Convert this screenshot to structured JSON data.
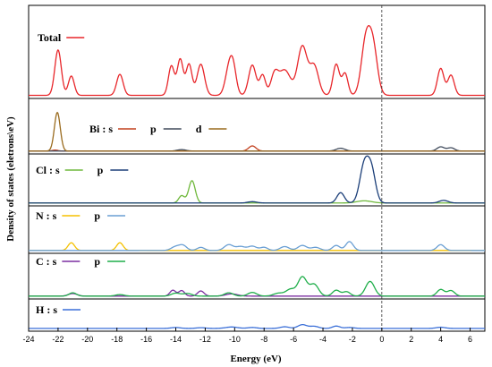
{
  "chart_data": {
    "type": "line",
    "xlabel": "Energy (eV)",
    "ylabel": "Density of states (eletrons\\eV)",
    "xlim": [
      -24,
      7
    ],
    "x_ticks": [
      "-24",
      "-22",
      "-20",
      "-18",
      "-16",
      "-14",
      "-12",
      "-10",
      "-8",
      "-6",
      "-4",
      "-2",
      "0",
      "2",
      "4",
      "6"
    ],
    "fermi_level": 0,
    "grid": false,
    "panels": [
      {
        "legend": {
          "prefix": "Total",
          "items": [
            {
              "label": "",
              "color": "#e8262a"
            }
          ]
        },
        "ylim": [
          0,
          10
        ],
        "series": [
          {
            "name": "Total",
            "color": "#e8262a",
            "peaks": [
              [
                -22,
                5.4,
                0.22
              ],
              [
                -21.1,
                2.3,
                0.2
              ],
              [
                -17.8,
                2.5,
                0.22
              ],
              [
                -14.3,
                3.5,
                0.2
              ],
              [
                -13.7,
                4.3,
                0.2
              ],
              [
                -13.1,
                3.7,
                0.2
              ],
              [
                -12.3,
                3.7,
                0.25
              ],
              [
                -10.4,
                2.9,
                0.25
              ],
              [
                -10.1,
                2.9,
                0.22
              ],
              [
                -8.8,
                3.6,
                0.25
              ],
              [
                -8.1,
                2.4,
                0.2
              ],
              [
                -7.3,
                2.3,
                0.25
              ],
              [
                -6.6,
                3.0,
                0.4
              ],
              [
                -5.4,
                5.8,
                0.32
              ],
              [
                -4.6,
                3.5,
                0.3
              ],
              [
                -3.1,
                3.7,
                0.22
              ],
              [
                -2.5,
                2.6,
                0.2
              ],
              [
                -1.1,
                6.1,
                0.3
              ],
              [
                -0.6,
                5.6,
                0.3
              ],
              [
                4.0,
                3.2,
                0.22
              ],
              [
                4.7,
                2.4,
                0.22
              ]
            ]
          }
        ]
      },
      {
        "legend": {
          "prefix": "Bi : s",
          "items": [
            {
              "label": "",
              "color": "#c2401e"
            },
            {
              "label": "p",
              "color": "#404b5c"
            },
            {
              "label": "d",
              "color": "#9a6b1e"
            }
          ]
        },
        "ylim": [
          0,
          10
        ],
        "series": [
          {
            "name": "Bi s",
            "color": "#c2401e",
            "peaks": [
              [
                -8.8,
                1.1,
                0.25
              ],
              [
                -22.2,
                0.2,
                0.2
              ]
            ]
          },
          {
            "name": "Bi p",
            "color": "#404b5c",
            "peaks": [
              [
                -13.6,
                0.3,
                0.3
              ],
              [
                -2.8,
                0.6,
                0.3
              ],
              [
                4.0,
                0.9,
                0.25
              ],
              [
                4.7,
                0.7,
                0.25
              ]
            ]
          },
          {
            "name": "Bi d",
            "color": "#9a6b1e",
            "peaks": [
              [
                -22.05,
                8.3,
                0.2
              ]
            ]
          }
        ]
      },
      {
        "legend": {
          "prefix": "Cl : s",
          "items": [
            {
              "label": "",
              "color": "#6fb83b"
            },
            {
              "label": "p",
              "color": "#1b3e78"
            }
          ]
        },
        "ylim": [
          0,
          10
        ],
        "series": [
          {
            "name": "Cl s",
            "color": "#6fb83b",
            "peaks": [
              [
                -13.6,
                1.7,
                0.2
              ],
              [
                -12.9,
                5.2,
                0.22
              ],
              [
                -1.2,
                0.5,
                0.5
              ]
            ]
          },
          {
            "name": "Cl p",
            "color": "#1b3e78",
            "peaks": [
              [
                -2.8,
                2.4,
                0.25
              ],
              [
                -1.2,
                8.6,
                0.3
              ],
              [
                -0.7,
                7.2,
                0.28
              ],
              [
                4.2,
                0.6,
                0.3
              ],
              [
                -8.8,
                0.3,
                0.3
              ]
            ]
          }
        ]
      },
      {
        "legend": {
          "prefix": "N : s",
          "items": [
            {
              "label": "",
              "color": "#f5c100"
            },
            {
              "label": "p",
              "color": "#6a9fd4"
            }
          ]
        },
        "ylim": [
          0,
          10
        ],
        "series": [
          {
            "name": "N s",
            "color": "#f5c100",
            "peaks": [
              [
                -21.1,
                2.0,
                0.22
              ],
              [
                -17.8,
                2.0,
                0.22
              ]
            ]
          },
          {
            "name": "N p",
            "color": "#6a9fd4",
            "peaks": [
              [
                -14.0,
                1.0,
                0.3
              ],
              [
                -13.5,
                1.2,
                0.25
              ],
              [
                -12.3,
                0.8,
                0.25
              ],
              [
                -10.4,
                1.5,
                0.3
              ],
              [
                -9.6,
                1.0,
                0.3
              ],
              [
                -8.8,
                1.1,
                0.3
              ],
              [
                -8.0,
                0.8,
                0.25
              ],
              [
                -6.6,
                1.0,
                0.3
              ],
              [
                -5.4,
                1.3,
                0.3
              ],
              [
                -4.5,
                0.8,
                0.3
              ],
              [
                -3.1,
                1.3,
                0.25
              ],
              [
                -2.2,
                2.3,
                0.25
              ],
              [
                4.0,
                1.5,
                0.25
              ]
            ]
          }
        ]
      },
      {
        "legend": {
          "prefix": "C : s",
          "items": [
            {
              "label": "",
              "color": "#7b2fa0"
            },
            {
              "label": "p",
              "color": "#1fae4a"
            }
          ]
        },
        "ylim": [
          0,
          10
        ],
        "series": [
          {
            "name": "C s",
            "color": "#7b2fa0",
            "peaks": [
              [
                -14.2,
                1.6,
                0.2
              ],
              [
                -13.6,
                1.5,
                0.2
              ],
              [
                -12.3,
                1.4,
                0.22
              ],
              [
                -10.2,
                0.6,
                0.4
              ],
              [
                -21.0,
                0.7,
                0.3
              ]
            ]
          },
          {
            "name": "C p",
            "color": "#1fae4a",
            "peaks": [
              [
                -21.0,
                0.9,
                0.25
              ],
              [
                -17.8,
                0.4,
                0.3
              ],
              [
                -14.0,
                0.8,
                0.3
              ],
              [
                -13.2,
                0.7,
                0.3
              ],
              [
                -10.4,
                0.9,
                0.3
              ],
              [
                -8.8,
                1.0,
                0.3
              ],
              [
                -7.0,
                0.8,
                0.35
              ],
              [
                -6.2,
                1.8,
                0.3
              ],
              [
                -5.4,
                5.2,
                0.3
              ],
              [
                -4.6,
                3.2,
                0.3
              ],
              [
                -3.1,
                1.6,
                0.25
              ],
              [
                -2.4,
                1.2,
                0.25
              ],
              [
                -0.8,
                4.0,
                0.3
              ],
              [
                4.0,
                1.8,
                0.25
              ],
              [
                4.7,
                1.5,
                0.25
              ]
            ]
          }
        ]
      },
      {
        "legend": {
          "prefix": "H : s",
          "items": [
            {
              "label": "",
              "color": "#3a6fd8"
            }
          ]
        },
        "ylim": [
          0,
          10
        ],
        "series": [
          {
            "name": "H s",
            "color": "#3a6fd8",
            "peaks": [
              [
                -14.0,
                0.4,
                0.3
              ],
              [
                -12.3,
                0.3,
                0.3
              ],
              [
                -10.2,
                0.6,
                0.4
              ],
              [
                -8.8,
                0.4,
                0.3
              ],
              [
                -6.6,
                0.7,
                0.3
              ],
              [
                -5.4,
                1.6,
                0.3
              ],
              [
                -4.6,
                0.9,
                0.3
              ],
              [
                -3.1,
                1.0,
                0.25
              ],
              [
                -2.2,
                0.4,
                0.3
              ],
              [
                4.0,
                0.5,
                0.3
              ]
            ]
          }
        ]
      }
    ]
  }
}
